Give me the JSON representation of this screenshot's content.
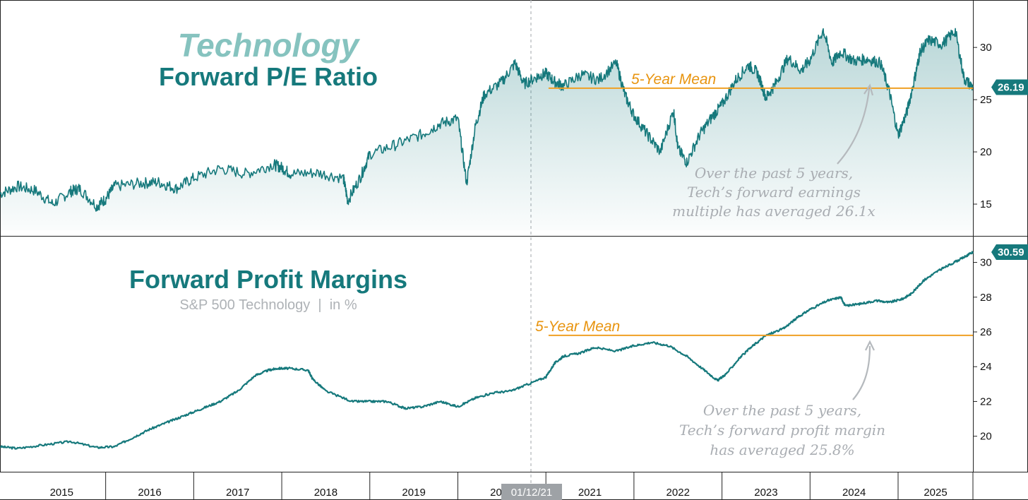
{
  "colors": {
    "teal": "#16797c",
    "teal_light": "#86c3bf",
    "mean": "#f0a024",
    "annotation": "#a9adb2",
    "badge_bg": "#16797c",
    "date_badge_bg": "#9ea2a6"
  },
  "cursor_date": "01/12/21",
  "chart_data": [
    {
      "type": "area",
      "title": "Technology",
      "subtitle": "Forward P/E Ratio",
      "y_ticks": [
        15,
        20,
        25,
        30
      ],
      "ylim": [
        12.5,
        34
      ],
      "xlim": [
        2014.8,
        2025.85
      ],
      "last_value": 26.19,
      "last_value_label": "26.19",
      "mean": {
        "label": "5-Year Mean",
        "value": 26.1,
        "x_start": 2021.03
      },
      "annotation": [
        "Over the past 5 years,",
        "Tech’s forward earnings",
        "multiple has averaged 26.1x"
      ],
      "series": [
        {
          "x": [
            2014.8,
            2015.0,
            2015.2,
            2015.4,
            2015.6,
            2015.7,
            2015.9,
            2016.0,
            2016.1,
            2016.4,
            2016.6,
            2016.8,
            2017.0,
            2017.3,
            2017.6,
            2017.9,
            2018.0,
            2018.1,
            2018.4,
            2018.7,
            2018.75,
            2018.9,
            2019.0,
            2019.3,
            2019.6,
            2019.8,
            2020.0,
            2020.1,
            2020.2,
            2020.3,
            2020.5,
            2020.65,
            2020.75,
            2020.9,
            2021.0,
            2021.1,
            2021.2,
            2021.4,
            2021.6,
            2021.8,
            2021.9,
            2022.0,
            2022.15,
            2022.3,
            2022.45,
            2022.5,
            2022.6,
            2022.75,
            2022.9,
            2023.0,
            2023.15,
            2023.3,
            2023.4,
            2023.5,
            2023.6,
            2023.75,
            2023.9,
            2024.0,
            2024.15,
            2024.25,
            2024.35,
            2024.5,
            2024.65,
            2024.8,
            2024.9,
            2025.0,
            2025.1,
            2025.2,
            2025.25,
            2025.35,
            2025.5,
            2025.65,
            2025.75,
            2025.85
          ],
          "values": [
            16.0,
            16.7,
            16.3,
            15.0,
            16.2,
            16.5,
            14.8,
            15.5,
            16.7,
            17.0,
            17.1,
            16.5,
            17.5,
            18.4,
            17.9,
            18.8,
            18.5,
            17.9,
            18.0,
            17.5,
            15.3,
            17.7,
            19.8,
            20.7,
            21.7,
            22.7,
            23.2,
            17.0,
            22.5,
            25.5,
            26.7,
            28.5,
            26.5,
            27.2,
            27.5,
            26.7,
            26.3,
            27.4,
            26.9,
            28.5,
            25.4,
            23.5,
            21.7,
            20.0,
            24.0,
            20.3,
            19.0,
            21.7,
            23.5,
            24.5,
            26.8,
            28.3,
            27.6,
            25.2,
            26.4,
            29.0,
            27.8,
            28.8,
            31.7,
            28.5,
            29.6,
            28.7,
            28.9,
            28.5,
            25.8,
            21.6,
            23.8,
            27.5,
            29.6,
            30.7,
            30.3,
            31.6,
            27.0,
            26.19
          ]
        }
      ]
    },
    {
      "type": "line",
      "title": "Forward Profit Margins",
      "subtitle": "S&P 500 Technology  |  in %",
      "y_ticks": [
        20,
        22,
        24,
        26,
        28,
        30
      ],
      "ylim": [
        18.2,
        31.2
      ],
      "xlim": [
        2014.8,
        2025.85
      ],
      "last_value": 30.59,
      "last_value_label": "30.59",
      "mean": {
        "label": "5-Year Mean",
        "value": 25.8,
        "x_start": 2021.03
      },
      "annotation": [
        "Over the past 5 years,",
        "Tech’s forward profit margin",
        "has averaged 25.8%"
      ],
      "series": [
        {
          "x": [
            2014.8,
            2015.0,
            2015.3,
            2015.6,
            2015.9,
            2016.1,
            2016.3,
            2016.5,
            2016.7,
            2016.9,
            2017.1,
            2017.3,
            2017.5,
            2017.7,
            2017.85,
            2017.95,
            2018.1,
            2018.3,
            2018.35,
            2018.5,
            2018.8,
            2019.0,
            2019.2,
            2019.4,
            2019.6,
            2019.8,
            2020.0,
            2020.2,
            2020.4,
            2020.6,
            2020.8,
            2021.0,
            2021.1,
            2021.2,
            2021.4,
            2021.55,
            2021.8,
            2022.0,
            2022.2,
            2022.4,
            2022.6,
            2022.8,
            2022.95,
            2023.05,
            2023.2,
            2023.35,
            2023.5,
            2023.7,
            2023.85,
            2024.0,
            2024.2,
            2024.35,
            2024.4,
            2024.55,
            2024.75,
            2024.9,
            2025.05,
            2025.15,
            2025.3,
            2025.45,
            2025.6,
            2025.75,
            2025.85
          ],
          "values": [
            19.4,
            19.3,
            19.5,
            19.7,
            19.35,
            19.4,
            19.9,
            20.4,
            20.8,
            21.2,
            21.6,
            22.0,
            22.6,
            23.5,
            23.8,
            23.9,
            23.9,
            23.8,
            23.3,
            22.6,
            22.0,
            22.0,
            22.0,
            21.6,
            21.7,
            22.0,
            21.7,
            22.2,
            22.5,
            22.6,
            23.0,
            23.4,
            24.2,
            24.6,
            24.8,
            25.1,
            24.9,
            25.2,
            25.4,
            25.2,
            24.6,
            23.8,
            23.2,
            23.6,
            24.5,
            25.2,
            25.8,
            26.2,
            26.8,
            27.3,
            27.8,
            28.0,
            27.5,
            27.6,
            27.8,
            27.7,
            27.9,
            28.2,
            29.0,
            29.5,
            29.9,
            30.3,
            30.59
          ]
        }
      ]
    }
  ],
  "x_axis": {
    "years": [
      "2015",
      "2016",
      "2017",
      "2018",
      "2019",
      "2020",
      "2021",
      "2022",
      "2023",
      "2024",
      "2025"
    ]
  }
}
